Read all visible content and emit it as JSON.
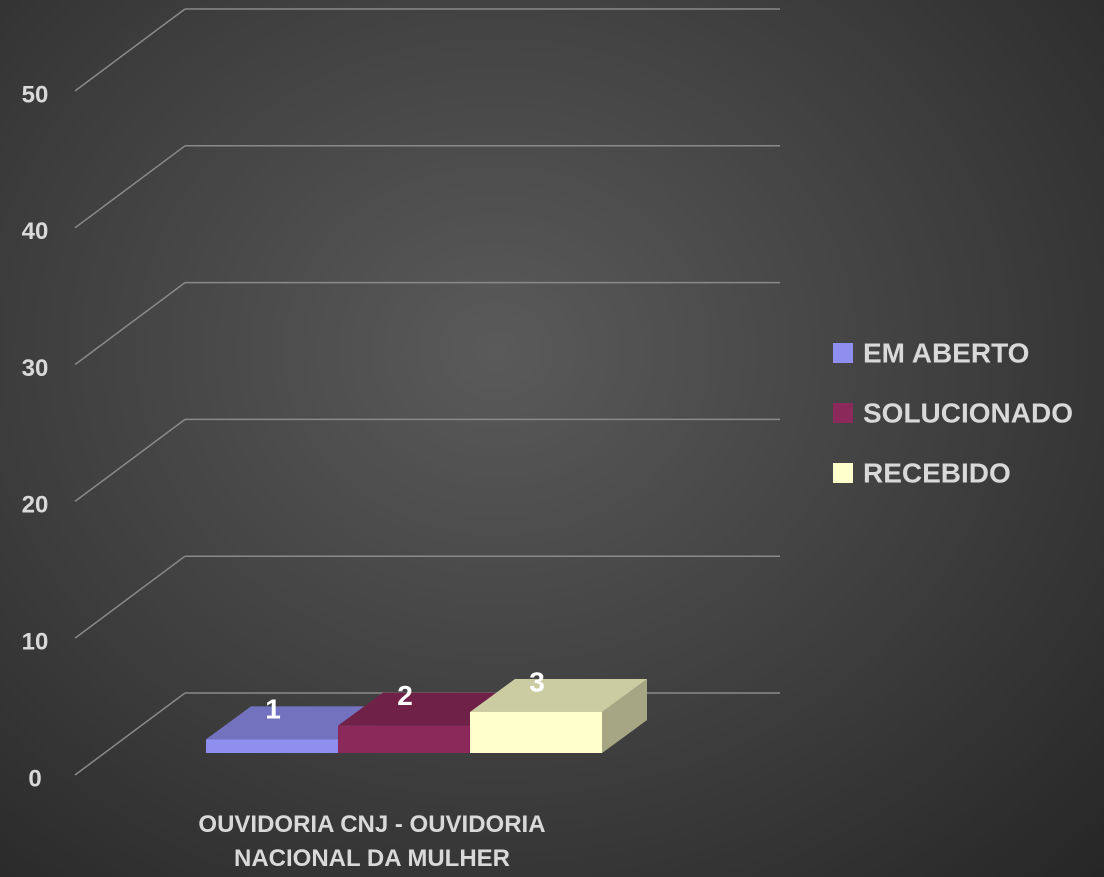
{
  "chart_data": {
    "type": "bar3d",
    "categories": [
      "OUVIDORIA CNJ - OUVIDORIA NACIONAL DA MULHER"
    ],
    "series": [
      {
        "name": "EM ABERTO",
        "color": "#8f8fef",
        "values": [
          1
        ]
      },
      {
        "name": "SOLUCIONADO",
        "color": "#8b2a5a",
        "values": [
          2
        ]
      },
      {
        "name": "RECEBIDO",
        "color": "#ffffcc",
        "values": [
          3
        ]
      }
    ],
    "ylim": [
      0,
      50
    ],
    "yticks": [
      0,
      10,
      20,
      30,
      40,
      50
    ],
    "grid": true,
    "legend": "right"
  }
}
